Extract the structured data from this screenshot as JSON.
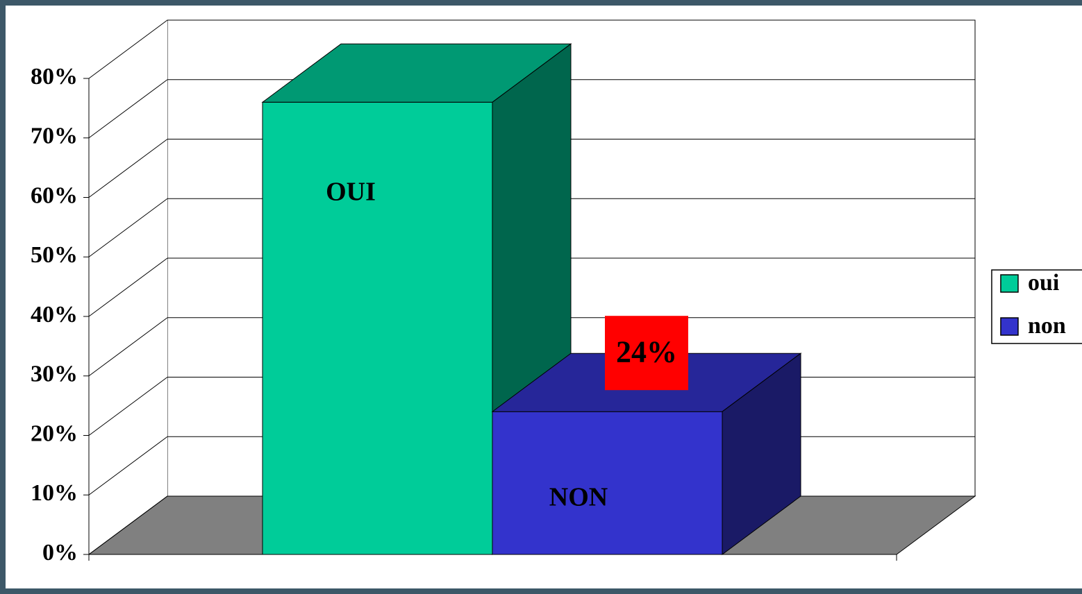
{
  "chart_data": {
    "type": "bar3d",
    "series": [
      {
        "name": "oui",
        "color": "#00cc99",
        "values": [
          76
        ]
      },
      {
        "name": "non",
        "color": "#3333cc",
        "values": [
          24
        ],
        "value_labels": [
          "24%"
        ]
      }
    ],
    "annotations": [
      "OUI",
      "NON"
    ],
    "ylim": [
      0,
      80
    ],
    "yticks": [
      {
        "value": 0,
        "label": "0%"
      },
      {
        "value": 10,
        "label": "10%"
      },
      {
        "value": 20,
        "label": "20%"
      },
      {
        "value": 30,
        "label": "30%"
      },
      {
        "value": 40,
        "label": "40%"
      },
      {
        "value": 50,
        "label": "50%"
      },
      {
        "value": 60,
        "label": "60%"
      },
      {
        "value": 70,
        "label": "70%"
      },
      {
        "value": 80,
        "label": "80%"
      }
    ],
    "grid": true,
    "legend": "right"
  }
}
